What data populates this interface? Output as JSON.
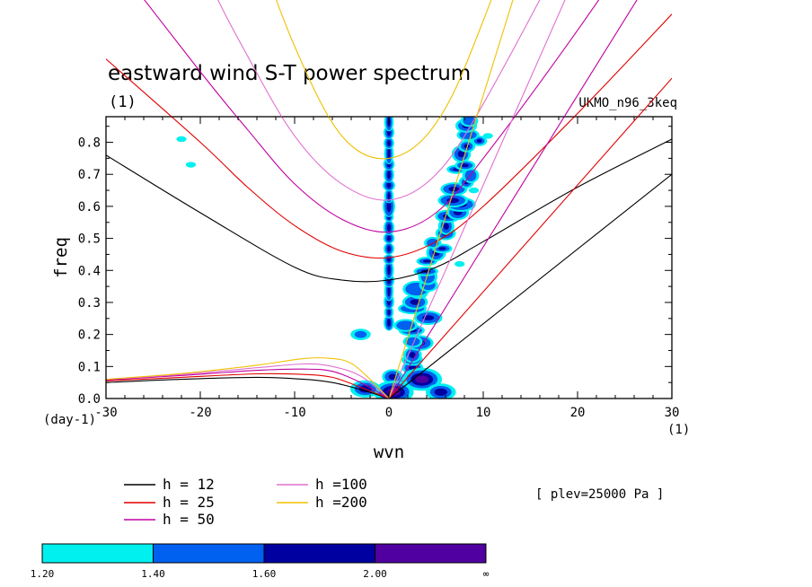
{
  "header": {
    "title": "eastward wind S-T power spectrum",
    "units": "(1)",
    "dataset": "UKMO_n96_3keq"
  },
  "footer": {
    "level_note": "[ plev=25000 Pa ]"
  },
  "chart_data": {
    "type": "line",
    "title": "eastward wind S-T power spectrum",
    "xlabel": "wvn",
    "ylabel": "freq",
    "x_unit": "(1)",
    "y_unit": "(day-1)",
    "xlim": [
      -30,
      30
    ],
    "ylim": [
      0,
      0.88
    ],
    "x_ticks": [
      {
        "value": -30,
        "label": "-30"
      },
      {
        "value": -20,
        "label": "-20"
      },
      {
        "value": -10,
        "label": "-10"
      },
      {
        "value": 0,
        "label": "0"
      },
      {
        "value": 10,
        "label": "10"
      },
      {
        "value": 20,
        "label": "20"
      },
      {
        "value": 30,
        "label": "30"
      }
    ],
    "y_ticks": [
      {
        "value": 0.0,
        "label": "0.0"
      },
      {
        "value": 0.1,
        "label": "0.1"
      },
      {
        "value": 0.2,
        "label": "0.2"
      },
      {
        "value": 0.3,
        "label": "0.3"
      },
      {
        "value": 0.4,
        "label": "0.4"
      },
      {
        "value": 0.5,
        "label": "0.5"
      },
      {
        "value": 0.6,
        "label": "0.6"
      },
      {
        "value": 0.7,
        "label": "0.7"
      },
      {
        "value": 0.8,
        "label": "0.8"
      }
    ],
    "series": [
      {
        "name": "h = 12",
        "color": "#000000",
        "kelvin": [
          [
            0,
            0
          ],
          [
            30,
            0.7
          ]
        ],
        "rossby": [
          [
            -30,
            0.05
          ],
          [
            -22,
            0.06
          ],
          [
            -14,
            0.066
          ],
          [
            -9,
            0.06
          ],
          [
            -6,
            0.05
          ],
          [
            -3,
            0.028
          ],
          [
            0,
            0
          ]
        ],
        "igw": [
          [
            -30,
            0.76
          ],
          [
            -20,
            0.58
          ],
          [
            -10,
            0.41
          ],
          [
            -5,
            0.37
          ],
          [
            0,
            0.37
          ],
          [
            5,
            0.41
          ],
          [
            10,
            0.49
          ],
          [
            20,
            0.66
          ],
          [
            30,
            0.81
          ]
        ]
      },
      {
        "name": "h = 25",
        "color": "#e00000",
        "kelvin": [
          [
            0,
            0
          ],
          [
            30,
            1.0
          ]
        ],
        "rossby": [
          [
            -30,
            0.055
          ],
          [
            -22,
            0.066
          ],
          [
            -14,
            0.077
          ],
          [
            -9,
            0.075
          ],
          [
            -6,
            0.066
          ],
          [
            -3,
            0.035
          ],
          [
            0,
            0
          ]
        ],
        "igw": [
          [
            -30,
            1.06
          ],
          [
            -20,
            0.8
          ],
          [
            -15,
            0.66
          ],
          [
            -10,
            0.54
          ],
          [
            -5,
            0.46
          ],
          [
            0,
            0.44
          ],
          [
            5,
            0.49
          ],
          [
            10,
            0.6
          ],
          [
            20,
            0.89
          ],
          [
            30,
            1.2
          ]
        ]
      },
      {
        "name": "h = 50",
        "color": "#c000a0",
        "kelvin": [
          [
            0,
            0
          ],
          [
            30,
            1.42
          ]
        ],
        "rossby": [
          [
            -30,
            0.058
          ],
          [
            -22,
            0.072
          ],
          [
            -14,
            0.088
          ],
          [
            -9,
            0.092
          ],
          [
            -6,
            0.085
          ],
          [
            -3,
            0.05
          ],
          [
            0,
            0
          ]
        ],
        "igw": [
          [
            -30,
            1.4
          ],
          [
            -20,
            1.02
          ],
          [
            -15,
            0.84
          ],
          [
            -10,
            0.67
          ],
          [
            -5,
            0.56
          ],
          [
            0,
            0.52
          ],
          [
            5,
            0.58
          ],
          [
            10,
            0.75
          ],
          [
            20,
            1.15
          ],
          [
            30,
            1.58
          ]
        ]
      },
      {
        "name": "h =100",
        "color": "#e070d0",
        "kelvin": [
          [
            0,
            0
          ],
          [
            30,
            2.0
          ]
        ],
        "rossby": [
          [
            -30,
            0.06
          ],
          [
            -22,
            0.075
          ],
          [
            -14,
            0.096
          ],
          [
            -9,
            0.108
          ],
          [
            -6,
            0.1
          ],
          [
            -3,
            0.07
          ],
          [
            0,
            0
          ]
        ],
        "igw": [
          [
            -30,
            2.02
          ],
          [
            -20,
            1.36
          ],
          [
            -15,
            1.07
          ],
          [
            -10,
            0.82
          ],
          [
            -5,
            0.67
          ],
          [
            0,
            0.62
          ],
          [
            5,
            0.7
          ],
          [
            10,
            0.92
          ],
          [
            20,
            1.47
          ],
          [
            30,
            2.05
          ]
        ]
      },
      {
        "name": "h =200",
        "color": "#f0c000",
        "kelvin": [
          [
            0,
            0
          ],
          [
            30,
            2.84
          ]
        ],
        "rossby": [
          [
            -30,
            0.06
          ],
          [
            -22,
            0.078
          ],
          [
            -14,
            0.104
          ],
          [
            -9,
            0.125
          ],
          [
            -6,
            0.125
          ],
          [
            -4,
            0.11
          ],
          [
            -2,
            0.06
          ],
          [
            0,
            0
          ]
        ],
        "igw": [
          [
            -30,
            2.9
          ],
          [
            -20,
            1.95
          ],
          [
            -15,
            1.5
          ],
          [
            -10,
            1.1
          ],
          [
            -5,
            0.82
          ],
          [
            0,
            0.75
          ],
          [
            5,
            0.86
          ],
          [
            10,
            1.18
          ],
          [
            20,
            2.0
          ],
          [
            30,
            2.9
          ]
        ]
      }
    ],
    "shaded_levels": {
      "boundaries": [
        "1.20",
        "1.40",
        "1.60",
        "2.00",
        "∞"
      ],
      "colors": [
        "#00f0f0",
        "#0060f0",
        "#0000a0",
        "#5000a0"
      ]
    },
    "shaded_features": [
      {
        "kind": "column",
        "x": 0,
        "y_from": 0.22,
        "y_to": 0.88,
        "level": 2
      },
      {
        "kind": "band",
        "x_from": 0.5,
        "y_from": 0.0,
        "x_to": 9.5,
        "y_to": 0.88,
        "level": 2
      },
      {
        "kind": "blob",
        "x": 0.5,
        "y": 0.02,
        "level": 3
      },
      {
        "kind": "blob",
        "x": 3.5,
        "y": 0.06,
        "level": 3
      },
      {
        "kind": "blob",
        "x": -2.5,
        "y": 0.03,
        "level": 2
      },
      {
        "kind": "blob",
        "x": 7.5,
        "y": 0.42,
        "level": 0
      },
      {
        "kind": "blob",
        "x": 9.0,
        "y": 0.65,
        "level": 0
      },
      {
        "kind": "blob",
        "x": 10.5,
        "y": 0.82,
        "level": 0
      },
      {
        "kind": "blob",
        "x": -22,
        "y": 0.81,
        "level": 0
      },
      {
        "kind": "blob",
        "x": -21,
        "y": 0.73,
        "level": 0
      },
      {
        "kind": "blob",
        "x": -3,
        "y": 0.2,
        "level": 1
      },
      {
        "kind": "blob",
        "x": 5.5,
        "y": 0.02,
        "level": 2
      }
    ]
  }
}
